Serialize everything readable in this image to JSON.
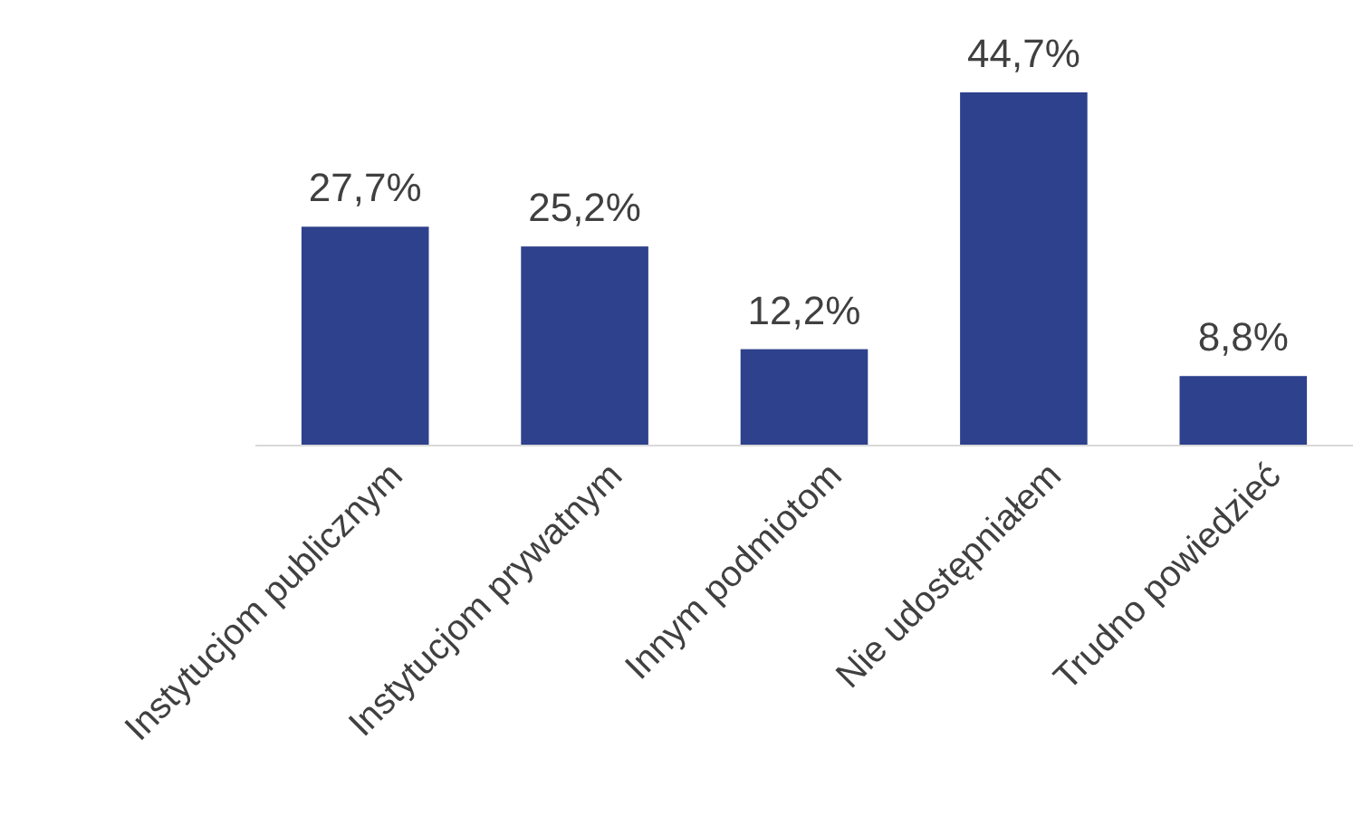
{
  "chart_data": {
    "type": "bar",
    "categories": [
      "Instytucjom publicznym",
      "Instytucjom prywatnym",
      "Innym podmiotom",
      "Nie udostępniałem",
      "Trudno powiedzieć"
    ],
    "values": [
      27.7,
      25.2,
      12.2,
      44.7,
      8.8
    ],
    "value_labels": [
      "27,7%",
      "25,2%",
      "12,2%",
      "44,7%",
      "8,8%"
    ],
    "color": "#2e418c"
  }
}
